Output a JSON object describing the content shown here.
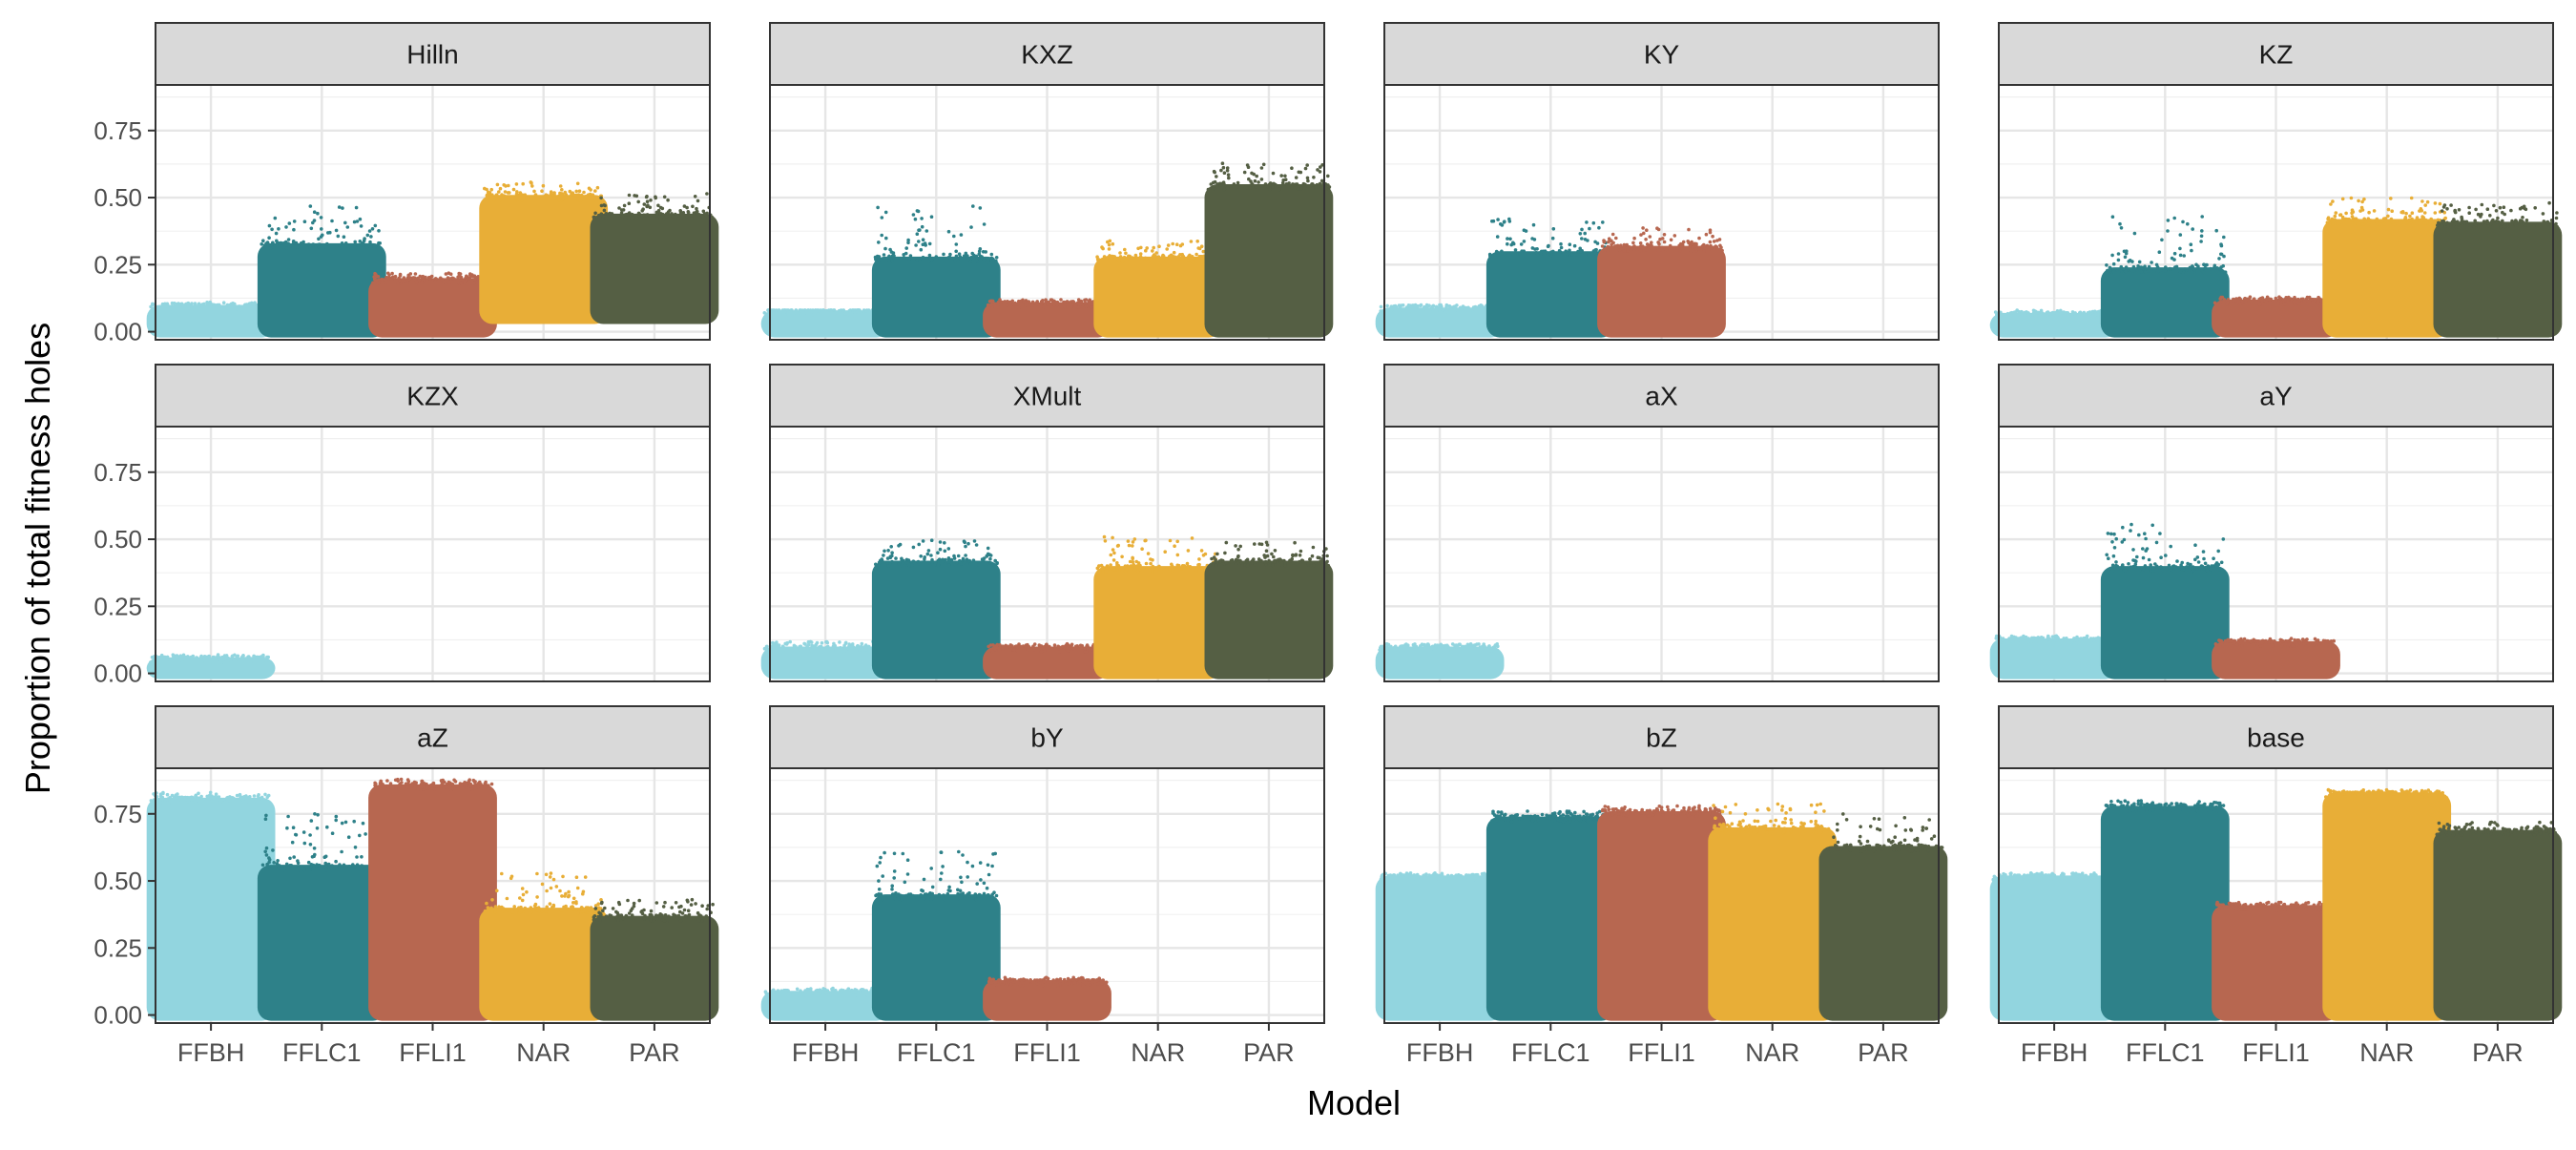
{
  "chart_data": {
    "type": "scatter",
    "subtype": "faceted jitter plot",
    "xlabel": "Model",
    "ylabel": "Proportion of total fitness holes",
    "categories": [
      "FFBH",
      "FFLC1",
      "FFLI1",
      "NAR",
      "PAR"
    ],
    "colors": {
      "FFBH": "#92D5DF",
      "FFLC1": "#2E8189",
      "FFLI1": "#B76750",
      "NAR": "#E8AE37",
      "PAR": "#555F44"
    },
    "ylim": [
      -0.03,
      0.92
    ],
    "yticks": [
      0.0,
      0.25,
      0.5,
      0.75
    ],
    "ytick_labels": [
      "0.00",
      "0.25",
      "0.50",
      "0.75"
    ],
    "grid": true,
    "legend": "none",
    "panels": [
      {
        "title": "Hilln",
        "series": [
          {
            "category": "FFBH",
            "min": 0.0,
            "body_max": 0.1,
            "max": 0.11
          },
          {
            "category": "FFLC1",
            "min": 0.0,
            "body_max": 0.33,
            "max": 0.47
          },
          {
            "category": "FFLI1",
            "min": 0.0,
            "body_max": 0.2,
            "max": 0.22
          },
          {
            "category": "NAR",
            "min": 0.05,
            "body_max": 0.51,
            "max": 0.56
          },
          {
            "category": "PAR",
            "min": 0.05,
            "body_max": 0.44,
            "max": 0.52
          }
        ]
      },
      {
        "title": "KXZ",
        "series": [
          {
            "category": "FFBH",
            "min": 0.0,
            "body_max": 0.08,
            "max": 0.08
          },
          {
            "category": "FFLC1",
            "min": 0.0,
            "body_max": 0.28,
            "max": 0.47
          },
          {
            "category": "FFLI1",
            "min": 0.0,
            "body_max": 0.11,
            "max": 0.12
          },
          {
            "category": "NAR",
            "min": 0.0,
            "body_max": 0.28,
            "max": 0.34
          },
          {
            "category": "PAR",
            "min": 0.0,
            "body_max": 0.55,
            "max": 0.63
          }
        ]
      },
      {
        "title": "KY",
        "series": [
          {
            "category": "FFBH",
            "min": 0.0,
            "body_max": 0.09,
            "max": 0.1
          },
          {
            "category": "FFLC1",
            "min": 0.0,
            "body_max": 0.3,
            "max": 0.42
          },
          {
            "category": "FFLI1",
            "min": 0.0,
            "body_max": 0.32,
            "max": 0.39
          },
          {
            "category": "NAR",
            "min": null,
            "body_max": null,
            "max": null
          },
          {
            "category": "PAR",
            "min": null,
            "body_max": null,
            "max": null
          }
        ]
      },
      {
        "title": "KZ",
        "series": [
          {
            "category": "FFBH",
            "min": 0.0,
            "body_max": 0.07,
            "max": 0.08
          },
          {
            "category": "FFLC1",
            "min": 0.0,
            "body_max": 0.24,
            "max": 0.43
          },
          {
            "category": "FFLI1",
            "min": 0.0,
            "body_max": 0.12,
            "max": 0.13
          },
          {
            "category": "NAR",
            "min": 0.0,
            "body_max": 0.42,
            "max": 0.5
          },
          {
            "category": "PAR",
            "min": 0.0,
            "body_max": 0.41,
            "max": 0.48
          }
        ]
      },
      {
        "title": "KZX",
        "series": [
          {
            "category": "FFBH",
            "min": 0.0,
            "body_max": 0.06,
            "max": 0.07
          },
          {
            "category": "FFLC1",
            "min": null,
            "body_max": null,
            "max": null
          },
          {
            "category": "FFLI1",
            "min": null,
            "body_max": null,
            "max": null
          },
          {
            "category": "NAR",
            "min": null,
            "body_max": null,
            "max": null
          },
          {
            "category": "PAR",
            "min": null,
            "body_max": null,
            "max": null
          }
        ]
      },
      {
        "title": "XMult",
        "series": [
          {
            "category": "FFBH",
            "min": 0.0,
            "body_max": 0.1,
            "max": 0.12
          },
          {
            "category": "FFLC1",
            "min": 0.0,
            "body_max": 0.42,
            "max": 0.5
          },
          {
            "category": "FFLI1",
            "min": 0.0,
            "body_max": 0.1,
            "max": 0.11
          },
          {
            "category": "NAR",
            "min": 0.0,
            "body_max": 0.4,
            "max": 0.51
          },
          {
            "category": "PAR",
            "min": 0.0,
            "body_max": 0.42,
            "max": 0.49
          }
        ]
      },
      {
        "title": "aX",
        "series": [
          {
            "category": "FFBH",
            "min": 0.0,
            "body_max": 0.1,
            "max": 0.11
          },
          {
            "category": "FFLC1",
            "min": null,
            "body_max": null,
            "max": null
          },
          {
            "category": "FFLI1",
            "min": null,
            "body_max": null,
            "max": null
          },
          {
            "category": "NAR",
            "min": null,
            "body_max": null,
            "max": null
          },
          {
            "category": "PAR",
            "min": null,
            "body_max": null,
            "max": null
          }
        ]
      },
      {
        "title": "aY",
        "series": [
          {
            "category": "FFBH",
            "min": 0.0,
            "body_max": 0.13,
            "max": 0.14
          },
          {
            "category": "FFLC1",
            "min": 0.0,
            "body_max": 0.4,
            "max": 0.56
          },
          {
            "category": "FFLI1",
            "min": 0.0,
            "body_max": 0.12,
            "max": 0.13
          },
          {
            "category": "NAR",
            "min": null,
            "body_max": null,
            "max": null
          },
          {
            "category": "PAR",
            "min": null,
            "body_max": null,
            "max": null
          }
        ]
      },
      {
        "title": "aZ",
        "series": [
          {
            "category": "FFBH",
            "min": 0.0,
            "body_max": 0.81,
            "max": 0.83
          },
          {
            "category": "FFLC1",
            "min": 0.0,
            "body_max": 0.56,
            "max": 0.76
          },
          {
            "category": "FFLI1",
            "min": 0.0,
            "body_max": 0.86,
            "max": 0.88
          },
          {
            "category": "NAR",
            "min": 0.0,
            "body_max": 0.4,
            "max": 0.53
          },
          {
            "category": "PAR",
            "min": 0.0,
            "body_max": 0.37,
            "max": 0.43
          }
        ]
      },
      {
        "title": "bY",
        "series": [
          {
            "category": "FFBH",
            "min": 0.0,
            "body_max": 0.09,
            "max": 0.1
          },
          {
            "category": "FFLC1",
            "min": 0.0,
            "body_max": 0.45,
            "max": 0.61
          },
          {
            "category": "FFLI1",
            "min": 0.0,
            "body_max": 0.13,
            "max": 0.14
          },
          {
            "category": "NAR",
            "min": null,
            "body_max": null,
            "max": null
          },
          {
            "category": "PAR",
            "min": null,
            "body_max": null,
            "max": null
          }
        ]
      },
      {
        "title": "bZ",
        "series": [
          {
            "category": "FFBH",
            "min": 0.0,
            "body_max": 0.52,
            "max": 0.53
          },
          {
            "category": "FFLC1",
            "min": 0.0,
            "body_max": 0.74,
            "max": 0.76
          },
          {
            "category": "FFLI1",
            "min": 0.0,
            "body_max": 0.76,
            "max": 0.78
          },
          {
            "category": "NAR",
            "min": 0.0,
            "body_max": 0.7,
            "max": 0.79
          },
          {
            "category": "PAR",
            "min": 0.0,
            "body_max": 0.63,
            "max": 0.75
          }
        ]
      },
      {
        "title": "base",
        "series": [
          {
            "category": "FFBH",
            "min": 0.0,
            "body_max": 0.52,
            "max": 0.53
          },
          {
            "category": "FFLC1",
            "min": 0.0,
            "body_max": 0.78,
            "max": 0.8
          },
          {
            "category": "FFLI1",
            "min": 0.0,
            "body_max": 0.41,
            "max": 0.42
          },
          {
            "category": "NAR",
            "min": 0.0,
            "body_max": 0.83,
            "max": 0.84
          },
          {
            "category": "PAR",
            "min": 0.0,
            "body_max": 0.69,
            "max": 0.72
          }
        ]
      }
    ]
  }
}
